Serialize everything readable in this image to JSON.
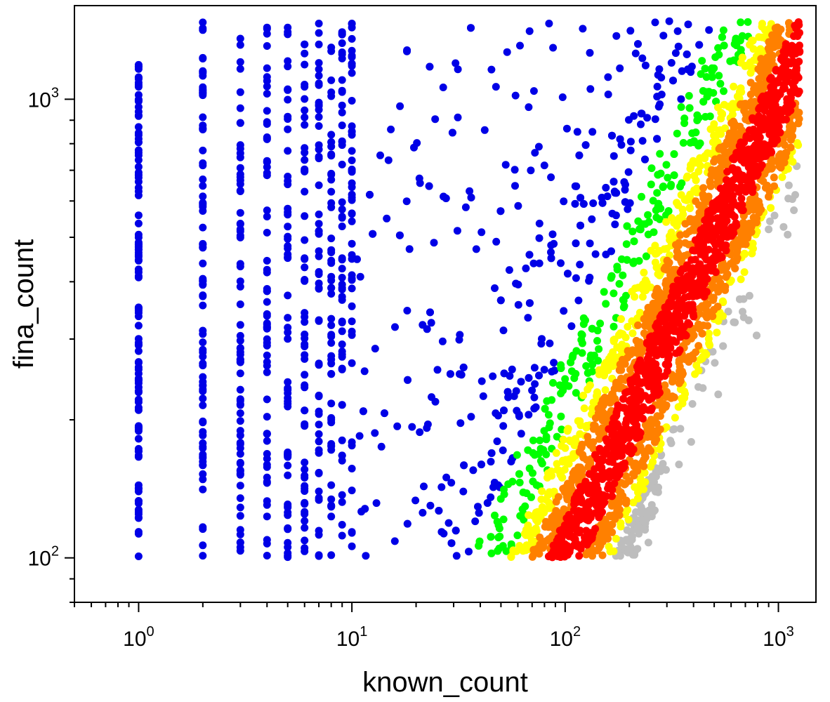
{
  "chart_data": {
    "type": "scatter",
    "title": "",
    "xlabel": "known_count",
    "ylabel": "fina_count",
    "xscale": "log",
    "yscale": "log",
    "xlim": [
      0.5,
      1500
    ],
    "ylim": [
      80,
      1600
    ],
    "grid": false,
    "legend": "none",
    "x_ticks": [
      {
        "base": "10",
        "exp": "0"
      },
      {
        "base": "10",
        "exp": "1"
      },
      {
        "base": "10",
        "exp": "2"
      },
      {
        "base": "10",
        "exp": "3"
      }
    ],
    "y_ticks": [
      {
        "base": "10",
        "exp": "2"
      },
      {
        "base": "10",
        "exp": "3"
      }
    ],
    "colors": {
      "gray": "#bdbdbd",
      "blue": "#0000e6",
      "green": "#00ff00",
      "yellow": "#ffff00",
      "orange": "#ff8000",
      "red": "#ff0000"
    },
    "color_bands": [
      "blue",
      "green",
      "yellow",
      "orange",
      "red",
      "orange",
      "yellow",
      "green",
      "blue",
      "gray"
    ],
    "y_range_of_points": [
      100,
      1480
    ],
    "x_range_of_points": [
      1,
      1300
    ],
    "discrete_x_columns": [
      1,
      2,
      3,
      4,
      5,
      6,
      7,
      8,
      9,
      10
    ]
  }
}
